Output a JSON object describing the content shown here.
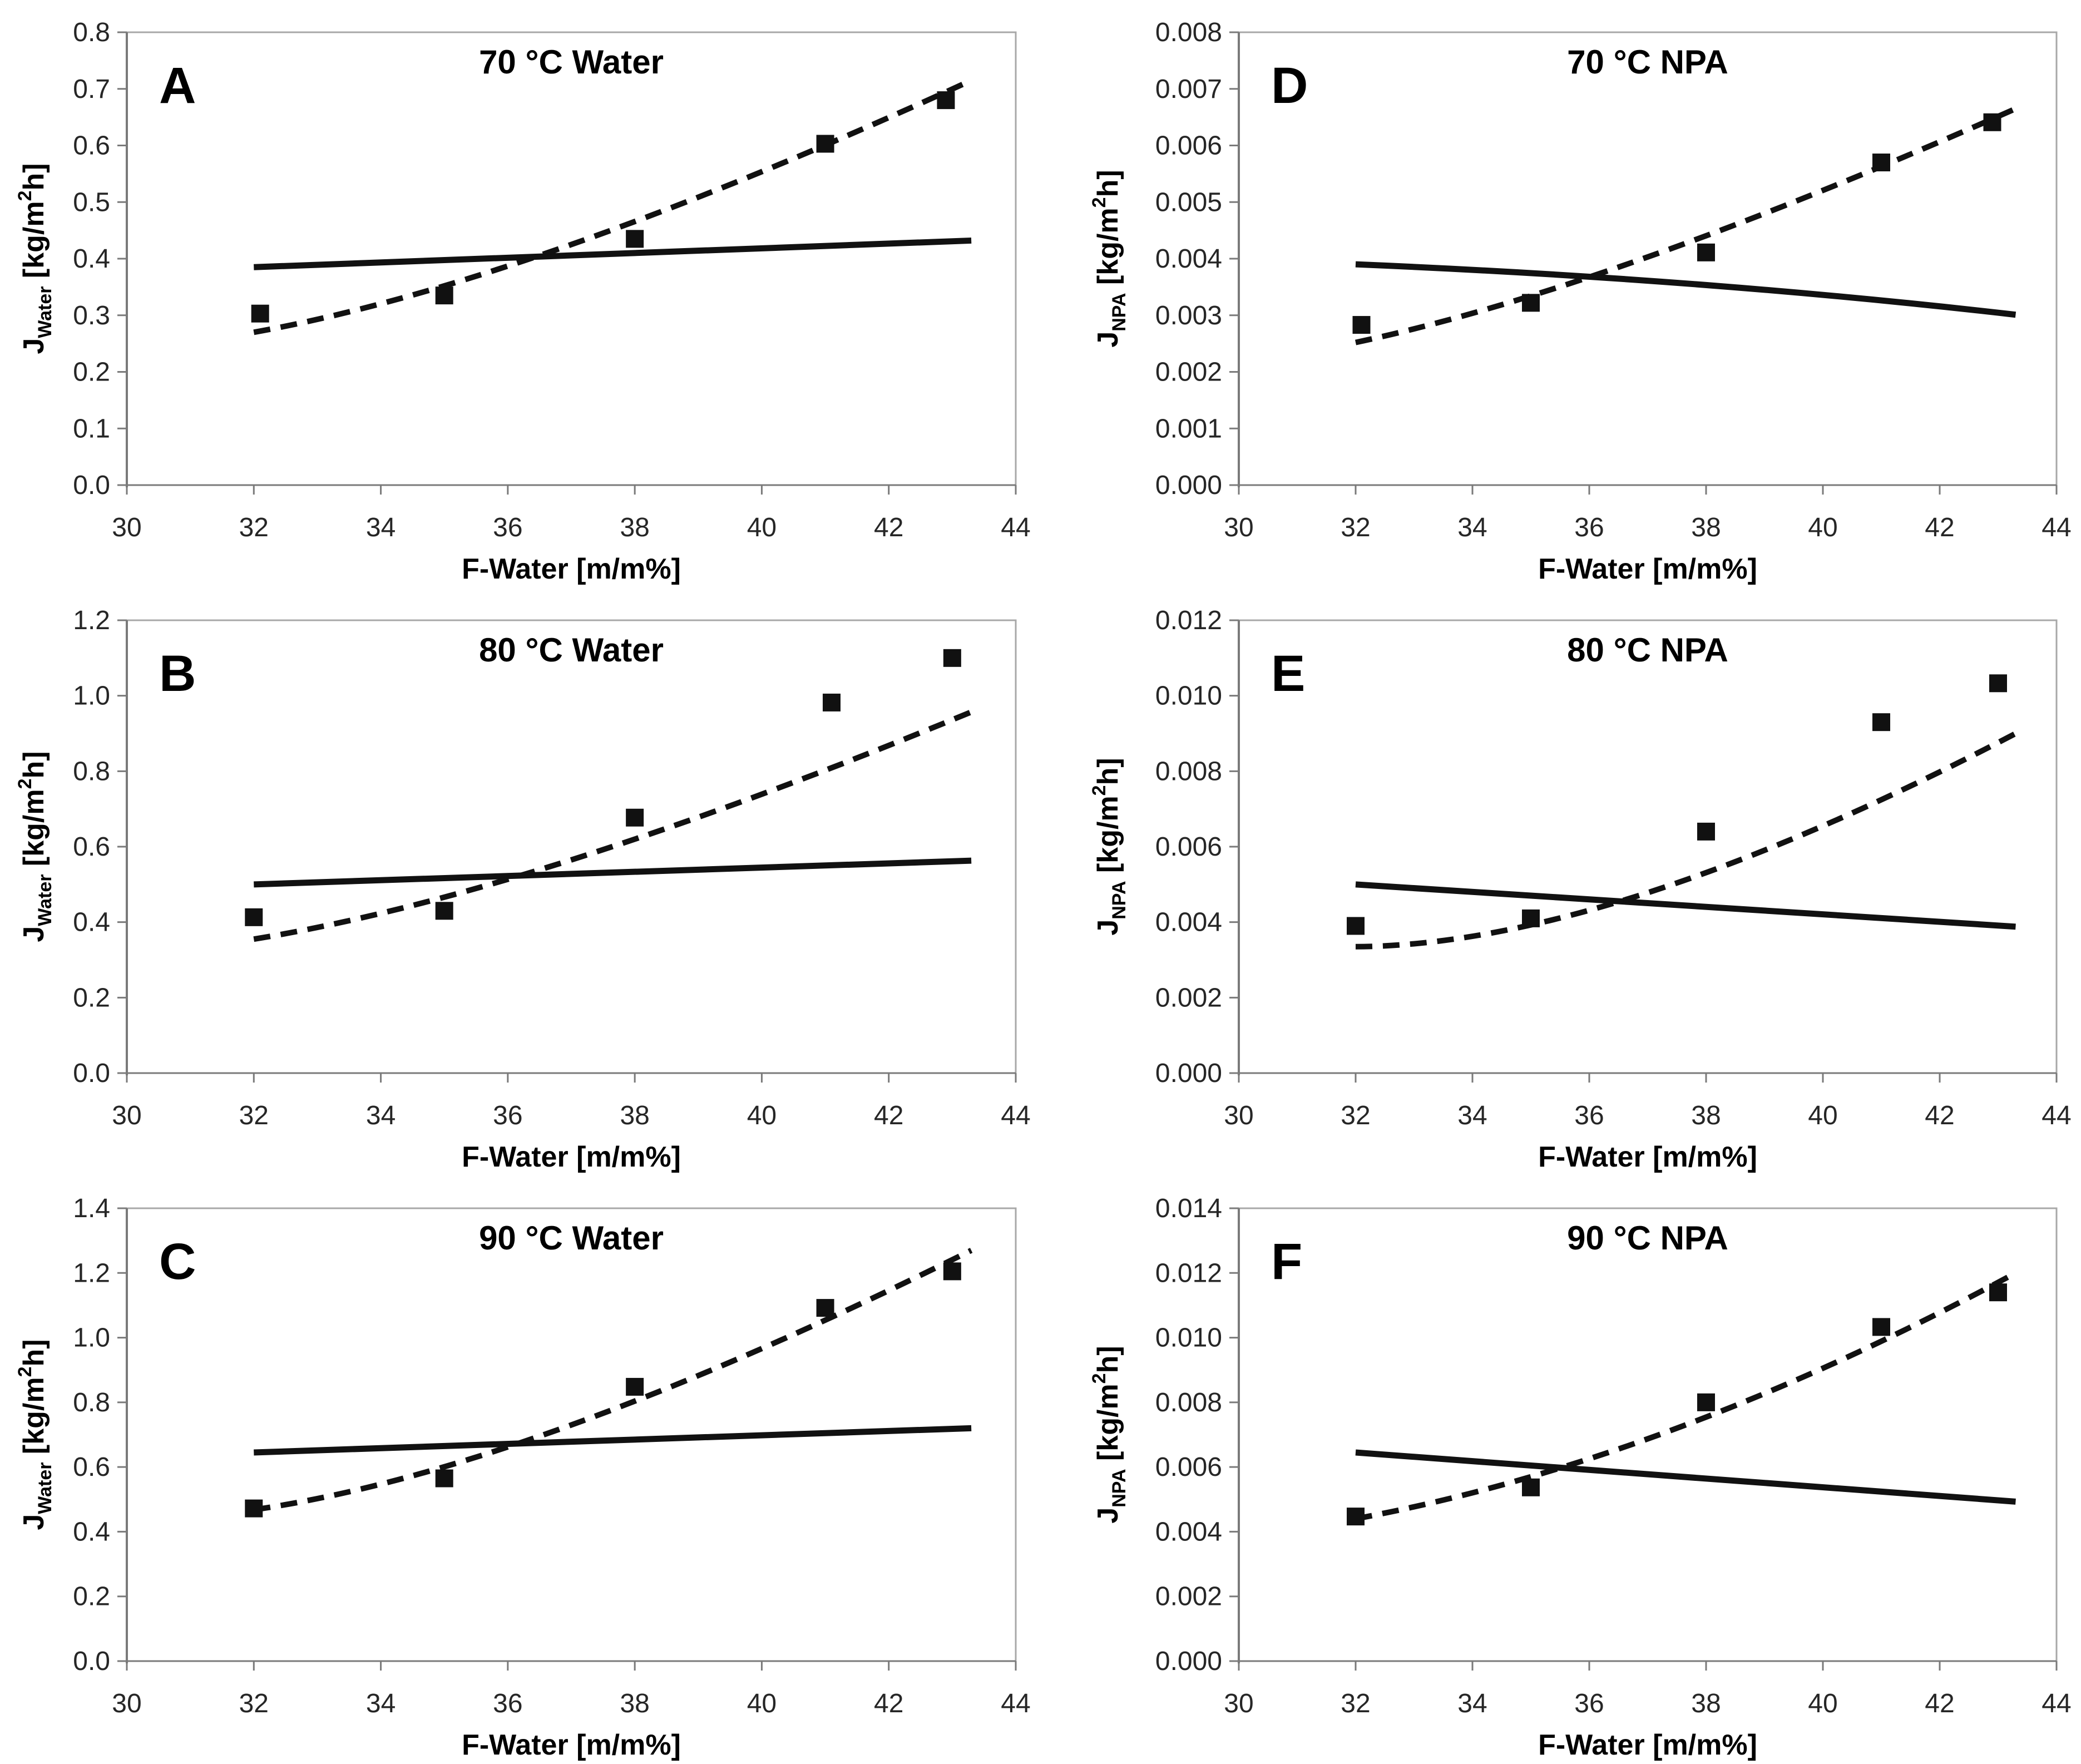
{
  "page": {
    "background": "#ffffff"
  },
  "colors": {
    "plot_border": "#a8a8a8",
    "axis_line": "#7a7a7a",
    "tick_mark": "#7a7a7a",
    "data_black": "#111111",
    "text": "#1a1a1a"
  },
  "chart_data": [
    {
      "letter": "A",
      "title": "70 °C Water",
      "type": "scatter",
      "xlabel": "F-Water [m/m%]",
      "ylabel_parts": {
        "symbol": "J",
        "sub": "Water",
        "units_pre": " [kg/m",
        "sup": "2",
        "units_post": "h]"
      },
      "xlim": [
        30,
        44
      ],
      "ylim": [
        0,
        0.8
      ],
      "x_ticks": [
        30,
        32,
        34,
        36,
        38,
        40,
        42,
        44
      ],
      "x_tick_labels": [
        "30",
        "32",
        "34",
        "36",
        "38",
        "40",
        "42",
        "44"
      ],
      "y_ticks": [
        0,
        0.1,
        0.2,
        0.3,
        0.4,
        0.5,
        0.6,
        0.7,
        0.8
      ],
      "y_tick_labels": [
        "0.0",
        "0.1",
        "0.2",
        "0.3",
        "0.4",
        "0.5",
        "0.6",
        "0.7",
        "0.8"
      ],
      "points_x": [
        32.1,
        35,
        38,
        41,
        42.9
      ],
      "points_y": [
        0.303,
        0.335,
        0.435,
        0.603,
        0.68
      ],
      "dashed_trend": [
        [
          32,
          0.27
        ],
        [
          37,
          0.425
        ],
        [
          43.3,
          0.715
        ]
      ],
      "solid_trend": [
        [
          32,
          0.385
        ],
        [
          43.3,
          0.432
        ]
      ],
      "legend_position": "none",
      "grid": "off"
    },
    {
      "letter": "D",
      "title": "70 °C NPA",
      "type": "scatter",
      "xlabel": "F-Water [m/m%]",
      "ylabel_parts": {
        "symbol": "J",
        "sub": "NPA",
        "units_pre": " [kg/m",
        "sup": "2",
        "units_post": "h]"
      },
      "xlim": [
        30,
        44
      ],
      "ylim": [
        0,
        0.008
      ],
      "x_ticks": [
        30,
        32,
        34,
        36,
        38,
        40,
        42,
        44
      ],
      "x_tick_labels": [
        "30",
        "32",
        "34",
        "36",
        "38",
        "40",
        "42",
        "44"
      ],
      "y_ticks": [
        0,
        0.001,
        0.002,
        0.003,
        0.004,
        0.005,
        0.006,
        0.007,
        0.008
      ],
      "y_tick_labels": [
        "0.000",
        "0.001",
        "0.002",
        "0.003",
        "0.004",
        "0.005",
        "0.006",
        "0.007",
        "0.008"
      ],
      "points_x": [
        32.1,
        35,
        38,
        41,
        42.9
      ],
      "points_y": [
        0.00283,
        0.00322,
        0.00411,
        0.0057,
        0.00641
      ],
      "dashed_trend": [
        [
          32,
          0.00252
        ],
        [
          37,
          0.00403
        ],
        [
          43.3,
          0.00665
        ]
      ],
      "solid_trend": [
        [
          32,
          0.0039
        ],
        [
          37.8,
          0.00355
        ],
        [
          43.3,
          0.00301
        ]
      ],
      "legend_position": "none",
      "grid": "off"
    },
    {
      "letter": "B",
      "title": "80 °C Water",
      "type": "scatter",
      "xlabel": "F-Water [m/m%]",
      "ylabel_parts": {
        "symbol": "J",
        "sub": "Water",
        "units_pre": " [kg/m",
        "sup": "2",
        "units_post": "h]"
      },
      "xlim": [
        30,
        44
      ],
      "ylim": [
        0,
        1.2
      ],
      "x_ticks": [
        30,
        32,
        34,
        36,
        38,
        40,
        42,
        44
      ],
      "x_tick_labels": [
        "30",
        "32",
        "34",
        "36",
        "38",
        "40",
        "42",
        "44"
      ],
      "y_ticks": [
        0,
        0.2,
        0.4,
        0.6,
        0.8,
        1.0,
        1.2
      ],
      "y_tick_labels": [
        "0.0",
        "0.2",
        "0.4",
        "0.6",
        "0.8",
        "1.0",
        "1.2"
      ],
      "points_x": [
        32,
        35,
        38,
        41.1,
        43
      ],
      "points_y": [
        0.413,
        0.43,
        0.677,
        0.982,
        1.1
      ],
      "dashed_trend": [
        [
          32,
          0.355
        ],
        [
          37,
          0.565
        ],
        [
          43.3,
          0.957
        ]
      ],
      "solid_trend": [
        [
          32,
          0.5
        ],
        [
          43.3,
          0.563
        ]
      ],
      "legend_position": "none",
      "grid": "off"
    },
    {
      "letter": "E",
      "title": "80 °C NPA",
      "type": "scatter",
      "xlabel": "F-Water [m/m%]",
      "ylabel_parts": {
        "symbol": "J",
        "sub": "NPA",
        "units_pre": " [kg/m",
        "sup": "2",
        "units_post": "h]"
      },
      "xlim": [
        30,
        44
      ],
      "ylim": [
        0,
        0.012
      ],
      "x_ticks": [
        30,
        32,
        34,
        36,
        38,
        40,
        42,
        44
      ],
      "x_tick_labels": [
        "30",
        "32",
        "34",
        "36",
        "38",
        "40",
        "42",
        "44"
      ],
      "y_ticks": [
        0,
        0.002,
        0.004,
        0.006,
        0.008,
        0.01,
        0.012
      ],
      "y_tick_labels": [
        "0.000",
        "0.002",
        "0.004",
        "0.006",
        "0.008",
        "0.010",
        "0.012"
      ],
      "points_x": [
        32,
        35,
        38,
        41,
        43
      ],
      "points_y": [
        0.0039,
        0.0041,
        0.0064,
        0.0093,
        0.01033
      ],
      "dashed_trend": [
        [
          32,
          0.00335
        ],
        [
          37,
          0.00478
        ],
        [
          43.3,
          0.009
        ]
      ],
      "solid_trend": [
        [
          32,
          0.005
        ],
        [
          43.3,
          0.00388
        ]
      ],
      "legend_position": "none",
      "grid": "off"
    },
    {
      "letter": "C",
      "title": "90 °C Water",
      "type": "scatter",
      "xlabel": "F-Water [m/m%]",
      "ylabel_parts": {
        "symbol": "J",
        "sub": "Water",
        "units_pre": " [kg/m",
        "sup": "2",
        "units_post": "h]"
      },
      "xlim": [
        30,
        44
      ],
      "ylim": [
        0,
        1.4
      ],
      "x_ticks": [
        30,
        32,
        34,
        36,
        38,
        40,
        42,
        44
      ],
      "x_tick_labels": [
        "30",
        "32",
        "34",
        "36",
        "38",
        "40",
        "42",
        "44"
      ],
      "y_ticks": [
        0,
        0.2,
        0.4,
        0.6,
        0.8,
        1.0,
        1.2,
        1.4
      ],
      "y_tick_labels": [
        "0.0",
        "0.2",
        "0.4",
        "0.6",
        "0.8",
        "1.0",
        "1.2",
        "1.4"
      ],
      "points_x": [
        32,
        35,
        38,
        41,
        43
      ],
      "points_y": [
        0.472,
        0.565,
        0.848,
        1.092,
        1.205
      ],
      "dashed_trend": [
        [
          32,
          0.468
        ],
        [
          37,
          0.73
        ],
        [
          43.3,
          1.27
        ]
      ],
      "solid_trend": [
        [
          32,
          0.645
        ],
        [
          43.3,
          0.72
        ]
      ],
      "legend_position": "none",
      "grid": "off"
    },
    {
      "letter": "F",
      "title": "90 °C NPA",
      "type": "scatter",
      "xlabel": "F-Water [m/m%]",
      "ylabel_parts": {
        "symbol": "J",
        "sub": "NPA",
        "units_pre": " [kg/m",
        "sup": "2",
        "units_post": "h]"
      },
      "xlim": [
        30,
        44
      ],
      "ylim": [
        0,
        0.014
      ],
      "x_ticks": [
        30,
        32,
        34,
        36,
        38,
        40,
        42,
        44
      ],
      "x_tick_labels": [
        "30",
        "32",
        "34",
        "36",
        "38",
        "40",
        "42",
        "44"
      ],
      "y_ticks": [
        0,
        0.002,
        0.004,
        0.006,
        0.008,
        0.01,
        0.012,
        0.014
      ],
      "y_tick_labels": [
        "0.000",
        "0.002",
        "0.004",
        "0.006",
        "0.008",
        "0.010",
        "0.012",
        "0.014"
      ],
      "points_x": [
        32,
        35,
        38,
        41,
        43
      ],
      "points_y": [
        0.00447,
        0.00537,
        0.008,
        0.01033,
        0.0114
      ],
      "dashed_trend": [
        [
          32,
          0.0044
        ],
        [
          37.5,
          0.0072
        ],
        [
          43.3,
          0.012
        ]
      ],
      "solid_trend": [
        [
          32,
          0.00645
        ],
        [
          43.3,
          0.00493
        ]
      ],
      "legend_position": "none",
      "grid": "off"
    }
  ]
}
